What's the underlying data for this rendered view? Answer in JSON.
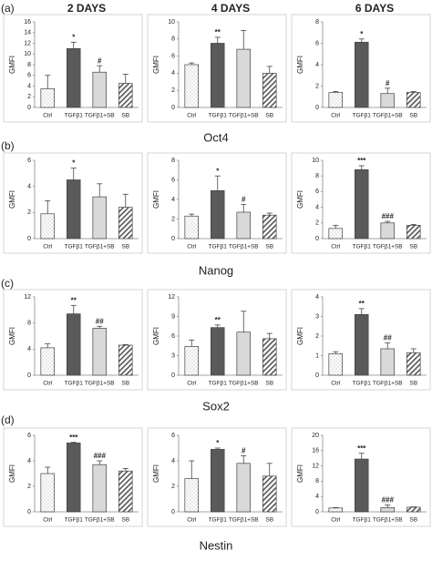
{
  "column_titles": [
    "2 DAYS",
    "4 DAYS",
    "6 DAYS"
  ],
  "panel_labels": [
    "(a)",
    "(b)",
    "(c)",
    "(d)"
  ],
  "row_titles": [
    "Oct4",
    "Nanog",
    "Sox2",
    "Nestin"
  ],
  "chart_data": [
    {
      "type": "bar",
      "ylabel": "GMFI",
      "categories": [
        "Ctrl",
        "TGFβ1",
        "TGFβ1+SB",
        "SB"
      ],
      "values": [
        3.5,
        11,
        6.6,
        4.5
      ],
      "errors": [
        2.5,
        1.2,
        1.2,
        1.7
      ],
      "annotations": [
        null,
        "*",
        "#",
        null
      ],
      "colors": [
        "#ffffff",
        "#5a5a5a",
        "#d9d9d9",
        "#ffffff"
      ],
      "patterns": [
        "dots",
        null,
        null,
        "stripes"
      ],
      "ylim": [
        0,
        16
      ],
      "yticks": [
        0,
        2,
        4,
        6,
        8,
        10,
        12,
        14,
        16
      ]
    },
    {
      "type": "bar",
      "ylabel": "GMFI",
      "categories": [
        "Ctrl",
        "TGFβ1",
        "TGFβ1+SB",
        "SB"
      ],
      "values": [
        5.0,
        7.5,
        6.8,
        4.0
      ],
      "errors": [
        0.2,
        0.7,
        2.2,
        0.8
      ],
      "annotations": [
        null,
        "**",
        null,
        null
      ],
      "colors": [
        "#ffffff",
        "#5a5a5a",
        "#d9d9d9",
        "#ffffff"
      ],
      "patterns": [
        "dots",
        null,
        null,
        "stripes"
      ],
      "ylim": [
        0,
        10
      ],
      "yticks": [
        0,
        2,
        4,
        6,
        8,
        10
      ]
    },
    {
      "type": "bar",
      "ylabel": "GMFI",
      "categories": [
        "Ctrl",
        "TGFβ1",
        "TGFβ1+SB",
        "SB"
      ],
      "values": [
        1.4,
        6.1,
        1.3,
        1.4
      ],
      "errors": [
        0.1,
        0.3,
        0.5,
        0.1
      ],
      "annotations": [
        null,
        "*",
        "#",
        null
      ],
      "colors": [
        "#ffffff",
        "#5a5a5a",
        "#d9d9d9",
        "#ffffff"
      ],
      "patterns": [
        "dots",
        null,
        null,
        "stripes"
      ],
      "ylim": [
        0,
        8
      ],
      "yticks": [
        0,
        2,
        4,
        6,
        8
      ]
    },
    {
      "type": "bar",
      "ylabel": "GMFI",
      "categories": [
        "Ctrl",
        "TGFβ1",
        "TGFβ1+SB",
        "SB"
      ],
      "values": [
        1.9,
        4.5,
        3.2,
        2.4
      ],
      "errors": [
        1.0,
        0.9,
        1.0,
        1.0
      ],
      "annotations": [
        null,
        "*",
        null,
        null
      ],
      "colors": [
        "#ffffff",
        "#5a5a5a",
        "#d9d9d9",
        "#ffffff"
      ],
      "patterns": [
        "dots",
        null,
        null,
        "stripes"
      ],
      "ylim": [
        0,
        6
      ],
      "yticks": [
        0,
        2,
        4,
        6
      ]
    },
    {
      "type": "bar",
      "ylabel": "GMFI",
      "categories": [
        "Ctrl",
        "TGFβ1",
        "TGFβ1+SB",
        "SB"
      ],
      "values": [
        2.3,
        4.9,
        2.7,
        2.4
      ],
      "errors": [
        0.2,
        1.5,
        0.8,
        0.2
      ],
      "annotations": [
        null,
        "*",
        "#",
        null
      ],
      "colors": [
        "#ffffff",
        "#5a5a5a",
        "#d9d9d9",
        "#ffffff"
      ],
      "patterns": [
        "dots",
        null,
        null,
        "stripes"
      ],
      "ylim": [
        0,
        8
      ],
      "yticks": [
        0,
        2,
        4,
        6,
        8
      ]
    },
    {
      "type": "bar",
      "ylabel": "GMFI",
      "categories": [
        "Ctrl",
        "TGFβ1",
        "TGFβ1+SB",
        "SB"
      ],
      "values": [
        1.3,
        8.8,
        2.0,
        1.7
      ],
      "errors": [
        0.4,
        0.5,
        0.2,
        0.1
      ],
      "annotations": [
        null,
        "***",
        "###",
        null
      ],
      "colors": [
        "#ffffff",
        "#5a5a5a",
        "#d9d9d9",
        "#ffffff"
      ],
      "patterns": [
        "dots",
        null,
        null,
        "stripes"
      ],
      "ylim": [
        0,
        10
      ],
      "yticks": [
        0,
        2,
        4,
        6,
        8,
        10
      ]
    },
    {
      "type": "bar",
      "ylabel": "GMFI",
      "categories": [
        "Ctrl",
        "TGFβ1",
        "TGFβ1+SB",
        "SB"
      ],
      "values": [
        4.2,
        9.4,
        7.2,
        4.6
      ],
      "errors": [
        0.6,
        1.3,
        0.3,
        0.1
      ],
      "annotations": [
        null,
        "**",
        "##",
        null
      ],
      "colors": [
        "#ffffff",
        "#5a5a5a",
        "#d9d9d9",
        "#ffffff"
      ],
      "patterns": [
        "dots",
        null,
        null,
        "stripes"
      ],
      "ylim": [
        0,
        12
      ],
      "yticks": [
        0,
        4,
        8,
        12
      ]
    },
    {
      "type": "bar",
      "ylabel": "GMFI",
      "categories": [
        "Ctrl",
        "TGFβ1",
        "TGFβ1+SB",
        "SB"
      ],
      "values": [
        4.4,
        7.3,
        6.6,
        5.6
      ],
      "errors": [
        1.0,
        0.4,
        3.2,
        0.8
      ],
      "annotations": [
        null,
        "**",
        null,
        null
      ],
      "colors": [
        "#ffffff",
        "#5a5a5a",
        "#d9d9d9",
        "#ffffff"
      ],
      "patterns": [
        "dots",
        null,
        null,
        "stripes"
      ],
      "ylim": [
        0,
        12
      ],
      "yticks": [
        0,
        3,
        6,
        9,
        12
      ]
    },
    {
      "type": "bar",
      "ylabel": "GMFI",
      "categories": [
        "Ctrl",
        "TGFβ1",
        "TGFβ1+SB",
        "SB"
      ],
      "values": [
        1.1,
        3.1,
        1.35,
        1.15
      ],
      "errors": [
        0.1,
        0.3,
        0.3,
        0.2
      ],
      "annotations": [
        null,
        "**",
        "##",
        null
      ],
      "colors": [
        "#ffffff",
        "#5a5a5a",
        "#d9d9d9",
        "#ffffff"
      ],
      "patterns": [
        "dots",
        null,
        null,
        "stripes"
      ],
      "ylim": [
        0,
        4
      ],
      "yticks": [
        0,
        1,
        2,
        3,
        4
      ]
    },
    {
      "type": "bar",
      "ylabel": "GMFI",
      "categories": [
        "Ctrl",
        "TGFβ1",
        "TGFβ1+SB",
        "SB"
      ],
      "values": [
        3.0,
        5.4,
        3.7,
        3.2
      ],
      "errors": [
        0.5,
        0.05,
        0.3,
        0.2
      ],
      "annotations": [
        null,
        "***",
        "###",
        null
      ],
      "colors": [
        "#ffffff",
        "#5a5a5a",
        "#d9d9d9",
        "#ffffff"
      ],
      "patterns": [
        "dots",
        null,
        null,
        "stripes"
      ],
      "ylim": [
        0,
        6
      ],
      "yticks": [
        0,
        2,
        4,
        6
      ]
    },
    {
      "type": "bar",
      "ylabel": "GMFI",
      "categories": [
        "Ctrl",
        "TGFβ1",
        "TGFβ1+SB",
        "SB"
      ],
      "values": [
        2.6,
        4.9,
        3.8,
        2.8
      ],
      "errors": [
        1.4,
        0.1,
        0.6,
        1.0
      ],
      "annotations": [
        null,
        "*",
        "#",
        null
      ],
      "colors": [
        "#ffffff",
        "#5a5a5a",
        "#d9d9d9",
        "#ffffff"
      ],
      "patterns": [
        "dots",
        null,
        null,
        "stripes"
      ],
      "ylim": [
        0,
        6
      ],
      "yticks": [
        0,
        2,
        4,
        6
      ]
    },
    {
      "type": "bar",
      "ylabel": "GMFI",
      "categories": [
        "Ctrl",
        "TGFβ1",
        "TGFβ1+SB",
        "SB"
      ],
      "values": [
        1.0,
        13.8,
        1.1,
        1.2
      ],
      "errors": [
        0.1,
        1.5,
        0.7,
        0.1
      ],
      "annotations": [
        null,
        "***",
        "###",
        null
      ],
      "colors": [
        "#ffffff",
        "#5a5a5a",
        "#d9d9d9",
        "#ffffff"
      ],
      "patterns": [
        "dots",
        null,
        null,
        "stripes"
      ],
      "ylim": [
        0,
        20
      ],
      "yticks": [
        0,
        4,
        8,
        12,
        16,
        20
      ]
    }
  ]
}
